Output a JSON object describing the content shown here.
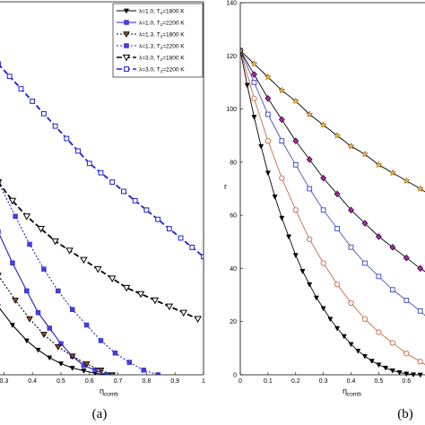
{
  "chart_data": [
    {
      "type": "line",
      "panel_label": "(a)",
      "xlabel": "η",
      "xlabel_sub": "comb",
      "ylabel": "",
      "xlim": [
        0.28,
        1.0
      ],
      "ylim": [
        0,
        120
      ],
      "x_ticks": [
        "0.3",
        "0.4",
        "0.5",
        "0.6",
        "0.7",
        "0.8",
        "0.9",
        "1"
      ],
      "grid": false,
      "legend_position": "top-right",
      "series": [
        {
          "name": "λ=1.0, T3=1800 K",
          "legend_main": "λ=1.0, T",
          "legend_sub": "3",
          "legend_tail": "=1800 K",
          "color": "#000000",
          "dash": "",
          "marker": "triangle-down-filled",
          "x": [
            0.28,
            0.33,
            0.38,
            0.42,
            0.46,
            0.5,
            0.54,
            0.58,
            0.62,
            0.66
          ],
          "y": [
            22,
            16,
            11,
            8,
            5.5,
            3.6,
            2.2,
            1.3,
            0.5,
            0
          ]
        },
        {
          "name": "λ=1.0, T3=2200 K",
          "legend_main": "λ=1.0, T",
          "legend_sub": "3",
          "legend_tail": "=2200 K",
          "color": "#1f1fcc",
          "dash": "",
          "marker": "square-filled",
          "x": [
            0.28,
            0.33,
            0.38,
            0.42,
            0.46,
            0.5,
            0.54,
            0.58,
            0.62,
            0.66
          ],
          "y": [
            46,
            36,
            27,
            20,
            15,
            10,
            6,
            3,
            1.5,
            0
          ]
        },
        {
          "name": "λ=1.3, T3=1800 K",
          "legend_main": "λ=1.3, T",
          "legend_sub": "3",
          "legend_tail": "=1800 K",
          "color": "#000000",
          "dash": "2,2",
          "marker": "triangle-down-brown",
          "x": [
            0.28,
            0.34,
            0.39,
            0.44,
            0.49,
            0.54,
            0.59,
            0.64,
            0.68
          ],
          "y": [
            32,
            24,
            18,
            13,
            9,
            6,
            3.5,
            1.5,
            0
          ]
        },
        {
          "name": "λ=1.3, T3=2200 K",
          "legend_main": "λ=1.3, T",
          "legend_sub": "3",
          "legend_tail": "=2200 K",
          "color": "#1f1fcc",
          "dash": "2,2",
          "marker": "square-filled",
          "x": [
            0.28,
            0.34,
            0.39,
            0.44,
            0.49,
            0.54,
            0.59,
            0.64,
            0.69,
            0.74,
            0.79,
            0.84
          ],
          "y": [
            62,
            51,
            42,
            34,
            27,
            21,
            16,
            11,
            7,
            4,
            1.5,
            0
          ]
        },
        {
          "name": "λ=3.0, T3=1800 K",
          "legend_main": "λ=3.0, T",
          "legend_sub": "3",
          "legend_tail": "=1800 K",
          "color": "#000000",
          "dash": "6,3",
          "marker": "triangle-down-open",
          "x": [
            0.28,
            0.33,
            0.38,
            0.43,
            0.48,
            0.53,
            0.58,
            0.63,
            0.68,
            0.73,
            0.78,
            0.83,
            0.88,
            0.93,
            0.98
          ],
          "y": [
            62,
            56,
            51,
            47,
            43,
            40,
            37,
            34,
            31,
            28,
            26,
            24,
            22,
            20,
            18
          ]
        },
        {
          "name": "λ=3.0, T3=2200 K",
          "legend_main": "λ=3.0, T",
          "legend_sub": "3",
          "legend_tail": "=2200 K",
          "color": "#1f1fcc",
          "dash": "6,3",
          "marker": "square-open",
          "x": [
            0.28,
            0.32,
            0.36,
            0.4,
            0.44,
            0.48,
            0.52,
            0.56,
            0.6,
            0.64,
            0.68,
            0.72,
            0.76,
            0.8,
            0.84,
            0.88,
            0.92,
            0.96,
            1.0
          ],
          "y": [
            100,
            96,
            92,
            88,
            84,
            80,
            76,
            72,
            68,
            65,
            62,
            59,
            56,
            53,
            50,
            47,
            44,
            41,
            38
          ]
        }
      ]
    },
    {
      "type": "line",
      "panel_label": "(b)",
      "xlabel": "η",
      "xlabel_sub": "comb",
      "ylabel": "r",
      "xlim": [
        0,
        0.68
      ],
      "ylim": [
        0,
        140
      ],
      "x_ticks": [
        "0",
        "0.1",
        "0.2",
        "0.3",
        "0.4",
        "0.5",
        "0.6"
      ],
      "y_ticks": [
        "0",
        "20",
        "40",
        "60",
        "80",
        "100",
        "120",
        "140"
      ],
      "grid": false,
      "series": [
        {
          "color": "#000000",
          "marker": "triangle-down-filled",
          "x": [
            0,
            0.025,
            0.05,
            0.075,
            0.1,
            0.125,
            0.15,
            0.175,
            0.2,
            0.225,
            0.25,
            0.275,
            0.3,
            0.325,
            0.35,
            0.375,
            0.4,
            0.425,
            0.45,
            0.475,
            0.5,
            0.525,
            0.55,
            0.575,
            0.6,
            0.625,
            0.65
          ],
          "y": [
            122,
            109,
            97,
            86,
            76,
            67,
            59,
            52,
            45,
            39,
            34,
            29,
            25,
            21,
            17.5,
            14.5,
            11.5,
            9,
            7,
            5.2,
            3.8,
            2.6,
            1.6,
            0.9,
            0.4,
            0.1,
            0
          ]
        },
        {
          "color": "#cc6644",
          "marker": "circle-open",
          "x": [
            0,
            0.05,
            0.1,
            0.15,
            0.2,
            0.25,
            0.3,
            0.35,
            0.4,
            0.45,
            0.5,
            0.55,
            0.6,
            0.65,
            0.68
          ],
          "y": [
            122,
            104,
            88,
            74,
            62,
            51,
            42,
            34,
            27,
            21,
            16,
            12,
            8,
            5,
            3
          ]
        },
        {
          "color": "#4455cc",
          "marker": "square-open",
          "x": [
            0,
            0.05,
            0.1,
            0.15,
            0.2,
            0.25,
            0.3,
            0.35,
            0.4,
            0.45,
            0.5,
            0.55,
            0.6,
            0.65,
            0.68
          ],
          "y": [
            122,
            110,
            98,
            88,
            79,
            70,
            62,
            55,
            48,
            42,
            37,
            32,
            28,
            24,
            21
          ]
        },
        {
          "color": "#000000",
          "marker": "diamond-purple",
          "x": [
            0,
            0.05,
            0.1,
            0.15,
            0.2,
            0.25,
            0.3,
            0.35,
            0.4,
            0.45,
            0.5,
            0.55,
            0.6,
            0.65,
            0.68
          ],
          "y": [
            122,
            113,
            104,
            96,
            88,
            81,
            74,
            68,
            62,
            57,
            52,
            48,
            44,
            40,
            38
          ]
        },
        {
          "color": "#000000",
          "marker": "star-orange",
          "x": [
            0,
            0.05,
            0.1,
            0.15,
            0.2,
            0.25,
            0.3,
            0.35,
            0.4,
            0.45,
            0.5,
            0.55,
            0.6,
            0.65,
            0.68
          ],
          "y": [
            122,
            117,
            112,
            107,
            103,
            98,
            94,
            90,
            86,
            83,
            79,
            76,
            73,
            70,
            68
          ]
        }
      ]
    }
  ]
}
